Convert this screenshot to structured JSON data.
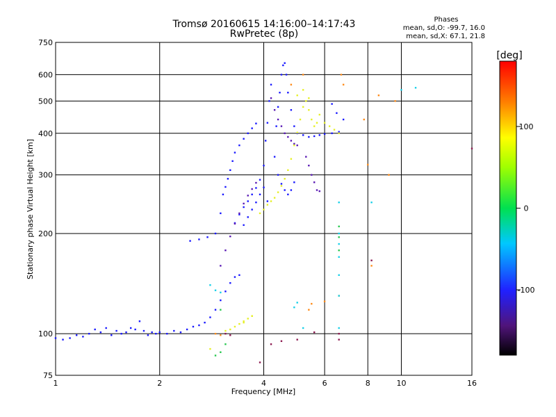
{
  "chart_data": {
    "type": "scatter",
    "title": "Tromsø 20160615 14:16:00–14:17:43",
    "subtitle": "RwPretec (8p)",
    "xlabel": "Frequency [MHz]",
    "ylabel": "Stationary phase Virtual Height [km]",
    "x_scale": "log",
    "y_scale": "log",
    "xlim": [
      1,
      16
    ],
    "ylim": [
      75,
      750
    ],
    "x_ticks": [
      1,
      2,
      4,
      6,
      8,
      10,
      16
    ],
    "y_ticks": [
      75,
      100,
      200,
      300,
      400,
      500,
      600,
      750
    ],
    "x_grid": [
      2,
      4,
      6,
      8,
      10
    ],
    "y_grid": [
      100,
      200,
      300,
      400,
      500,
      600
    ],
    "legend": {
      "title": "Phases",
      "line1": "mean, sd,O: -99.7, 16.0",
      "line2": "mean, sd,X: 67.1, 21.8"
    },
    "colorbar": {
      "label": "[deg]",
      "min": -180,
      "max": 180,
      "ticks": [
        100,
        0,
        -100
      ]
    },
    "trace_colors": {
      "blue": "#1a1aff",
      "purple": "#5a1ab4",
      "yellow": "#e6f028",
      "orange": "#ff8c1a",
      "cyan": "#18d0e8",
      "green": "#28c850",
      "darkred": "#8c1a50"
    },
    "series": [
      {
        "color": "blue",
        "points": [
          [
            1,
            97
          ],
          [
            1.05,
            96
          ],
          [
            1.1,
            97
          ],
          [
            1.15,
            99
          ],
          [
            1.2,
            98
          ],
          [
            1.25,
            100
          ],
          [
            1.3,
            103
          ],
          [
            1.35,
            101
          ],
          [
            1.4,
            104
          ],
          [
            1.45,
            99
          ],
          [
            1.5,
            102
          ],
          [
            1.55,
            100
          ],
          [
            1.6,
            101
          ],
          [
            1.65,
            104
          ],
          [
            1.7,
            103
          ],
          [
            1.75,
            109
          ],
          [
            1.8,
            102
          ],
          [
            1.85,
            99
          ],
          [
            1.9,
            101
          ],
          [
            1.95,
            100
          ],
          [
            2.0,
            101
          ],
          [
            2.1,
            100
          ],
          [
            2.2,
            102
          ],
          [
            2.3,
            101
          ],
          [
            2.4,
            103
          ],
          [
            2.5,
            105
          ],
          [
            2.6,
            106
          ],
          [
            2.7,
            108
          ],
          [
            2.8,
            112
          ],
          [
            2.9,
            118
          ],
          [
            3.0,
            126
          ],
          [
            3.1,
            134
          ],
          [
            3.2,
            142
          ],
          [
            3.3,
            148
          ],
          [
            3.4,
            150
          ],
          [
            2.45,
            190
          ],
          [
            2.6,
            192
          ],
          [
            2.75,
            195
          ],
          [
            2.9,
            200
          ],
          [
            3.0,
            230
          ],
          [
            3.05,
            262
          ],
          [
            3.1,
            276
          ],
          [
            3.15,
            292
          ],
          [
            3.2,
            310
          ],
          [
            3.25,
            330
          ],
          [
            3.3,
            350
          ],
          [
            3.4,
            368
          ],
          [
            3.5,
            385
          ],
          [
            3.6,
            400
          ],
          [
            3.7,
            414
          ],
          [
            3.8,
            428
          ],
          [
            3.3,
            215
          ],
          [
            3.4,
            228
          ],
          [
            3.5,
            240
          ],
          [
            3.6,
            250
          ],
          [
            3.7,
            262
          ],
          [
            3.8,
            274
          ],
          [
            3.9,
            290
          ],
          [
            4.0,
            320
          ],
          [
            4.05,
            380
          ],
          [
            4.1,
            430
          ],
          [
            4.15,
            500
          ],
          [
            4.2,
            560
          ],
          [
            3.5,
            212
          ],
          [
            3.6,
            224
          ],
          [
            3.7,
            236
          ],
          [
            3.8,
            248
          ],
          [
            3.9,
            262
          ],
          [
            4.0,
            275
          ],
          [
            4.1,
            250
          ],
          [
            4.3,
            340
          ],
          [
            4.35,
            420
          ],
          [
            4.4,
            480
          ],
          [
            4.45,
            530
          ],
          [
            4.5,
            600
          ],
          [
            4.55,
            640
          ],
          [
            4.6,
            650
          ],
          [
            4.65,
            600
          ],
          [
            4.7,
            530
          ],
          [
            4.8,
            470
          ],
          [
            4.9,
            420
          ],
          [
            5.0,
            400
          ],
          [
            5.2,
            395
          ],
          [
            5.4,
            390
          ],
          [
            5.6,
            392
          ],
          [
            5.8,
            395
          ],
          [
            6.0,
            398
          ],
          [
            6.3,
            400
          ],
          [
            6.6,
            404
          ],
          [
            6.3,
            490
          ],
          [
            6.5,
            460
          ],
          [
            6.8,
            440
          ],
          [
            4.4,
            300
          ],
          [
            4.5,
            282
          ],
          [
            4.6,
            270
          ],
          [
            4.7,
            262
          ],
          [
            4.8,
            270
          ],
          [
            4.9,
            285
          ]
        ]
      },
      {
        "color": "purple",
        "points": [
          [
            3.0,
            160
          ],
          [
            3.1,
            178
          ],
          [
            3.2,
            196
          ],
          [
            3.3,
            214
          ],
          [
            3.4,
            230
          ],
          [
            3.5,
            246
          ],
          [
            3.6,
            260
          ],
          [
            3.7,
            272
          ],
          [
            3.8,
            284
          ],
          [
            4.2,
            510
          ],
          [
            4.3,
            470
          ],
          [
            4.4,
            440
          ],
          [
            4.5,
            420
          ],
          [
            4.6,
            400
          ],
          [
            4.7,
            390
          ],
          [
            5.3,
            340
          ],
          [
            5.4,
            320
          ],
          [
            5.5,
            300
          ],
          [
            5.6,
            285
          ],
          [
            5.7,
            270
          ],
          [
            5.8,
            268
          ],
          [
            4.8,
            380
          ],
          [
            4.9,
            372
          ],
          [
            5.0,
            368
          ]
        ]
      },
      {
        "color": "yellow",
        "points": [
          [
            3.1,
            102
          ],
          [
            3.2,
            103
          ],
          [
            3.3,
            105
          ],
          [
            3.4,
            107
          ],
          [
            3.5,
            109
          ],
          [
            3.6,
            111
          ],
          [
            3.7,
            113
          ],
          [
            3.5,
            108
          ],
          [
            3.7,
            113
          ],
          [
            3.9,
            230
          ],
          [
            4.0,
            236
          ],
          [
            4.1,
            244
          ],
          [
            4.2,
            250
          ],
          [
            4.3,
            256
          ],
          [
            4.4,
            266
          ],
          [
            4.5,
            278
          ],
          [
            4.6,
            292
          ],
          [
            4.7,
            310
          ],
          [
            4.8,
            335
          ],
          [
            4.9,
            368
          ],
          [
            5.0,
            402
          ],
          [
            5.1,
            440
          ],
          [
            5.2,
            480
          ],
          [
            5.3,
            500
          ],
          [
            5.4,
            470
          ],
          [
            5.5,
            440
          ],
          [
            5.6,
            420
          ],
          [
            5.7,
            430
          ],
          [
            5.8,
            455
          ],
          [
            6.0,
            430
          ],
          [
            6.2,
            420
          ],
          [
            6.4,
            410
          ],
          [
            6.6,
            400
          ],
          [
            5.0,
            520
          ],
          [
            5.2,
            540
          ],
          [
            5.4,
            510
          ],
          [
            2.8,
            90
          ]
        ]
      },
      {
        "color": "orange",
        "points": [
          [
            5.4,
            118
          ],
          [
            5.5,
            123
          ],
          [
            6.0,
            125
          ],
          [
            6.6,
            130
          ],
          [
            6.7,
            600
          ],
          [
            6.8,
            560
          ],
          [
            8.0,
            322
          ],
          [
            8.2,
            160
          ],
          [
            9.2,
            300
          ],
          [
            7.8,
            440
          ],
          [
            8.6,
            520
          ],
          [
            4.8,
            560
          ],
          [
            5.2,
            600
          ],
          [
            9.6,
            500
          ],
          [
            2.9,
            100
          ],
          [
            3.0,
            99
          ]
        ]
      },
      {
        "color": "cyan",
        "points": [
          [
            6.6,
            248
          ],
          [
            6.6,
            200
          ],
          [
            6.6,
            186
          ],
          [
            6.6,
            170
          ],
          [
            6.6,
            150
          ],
          [
            6.6,
            130
          ],
          [
            6.6,
            104
          ],
          [
            4.9,
            120
          ],
          [
            5.0,
            124
          ],
          [
            5.2,
            104
          ],
          [
            8.2,
            248
          ],
          [
            11,
            548
          ],
          [
            10,
            540
          ],
          [
            2.8,
            140
          ],
          [
            2.9,
            135
          ],
          [
            3.0,
            133
          ]
        ]
      },
      {
        "color": "green",
        "points": [
          [
            6.6,
            210
          ],
          [
            6.6,
            195
          ],
          [
            6.6,
            178
          ],
          [
            2.9,
            86
          ],
          [
            3.0,
            88
          ],
          [
            3.1,
            93
          ],
          [
            3.0,
            118
          ]
        ]
      },
      {
        "color": "darkred",
        "points": [
          [
            3.9,
            82
          ],
          [
            4.2,
            93
          ],
          [
            4.5,
            95
          ],
          [
            5.0,
            96
          ],
          [
            5.6,
            101
          ],
          [
            6.6,
            96
          ],
          [
            6.6,
            100
          ],
          [
            3.1,
            100
          ],
          [
            3.2,
            99
          ],
          [
            16,
            360
          ],
          [
            8.2,
            166
          ]
        ]
      }
    ]
  }
}
